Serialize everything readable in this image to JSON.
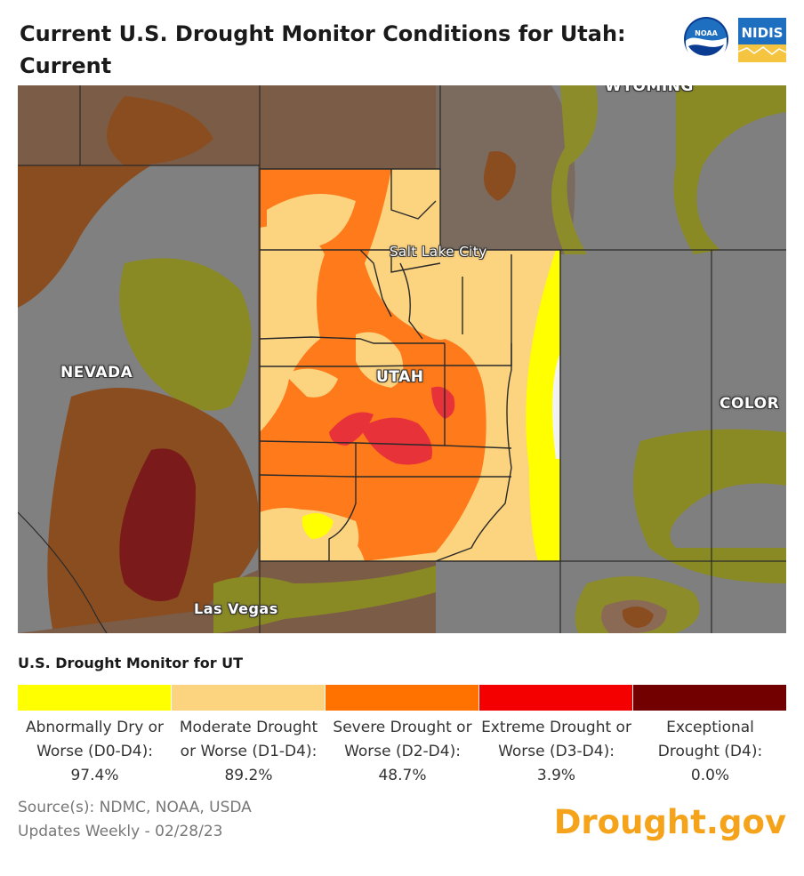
{
  "header": {
    "title": "Current U.S. Drought Monitor Conditions for Utah: Current",
    "noaa_logo_text": "NOAA",
    "nidis_logo_text": "NIDIS"
  },
  "map": {
    "labels": {
      "wyoming": "WYOMING",
      "salt_lake_city": "Salt Lake City",
      "utah": "UTAH",
      "nevada": "NEVADA",
      "colorado": "COLOR",
      "las_vegas": "Las Vegas"
    }
  },
  "legend": {
    "title": "U.S. Drought Monitor for UT",
    "items": [
      {
        "label": "Abnormally Dry or Worse (D0-D4):",
        "value": "97.4%",
        "color": "#ffff00"
      },
      {
        "label": "Moderate Drought or Worse (D1-D4):",
        "value": "89.2%",
        "color": "#fcd37f"
      },
      {
        "label": "Severe Drought or Worse (D2-D4):",
        "value": "48.7%",
        "color": "#ff7200"
      },
      {
        "label": "Extreme Drought or Worse (D3-D4):",
        "value": "3.9%",
        "color": "#f40000"
      },
      {
        "label": "Exceptional Drought (D4):",
        "value": "0.0%",
        "color": "#730000"
      }
    ]
  },
  "footer": {
    "source": "Source(s): NDMC, NOAA, USDA",
    "updated": "Updates Weekly - 02/28/23",
    "brand": "Drought.gov"
  }
}
